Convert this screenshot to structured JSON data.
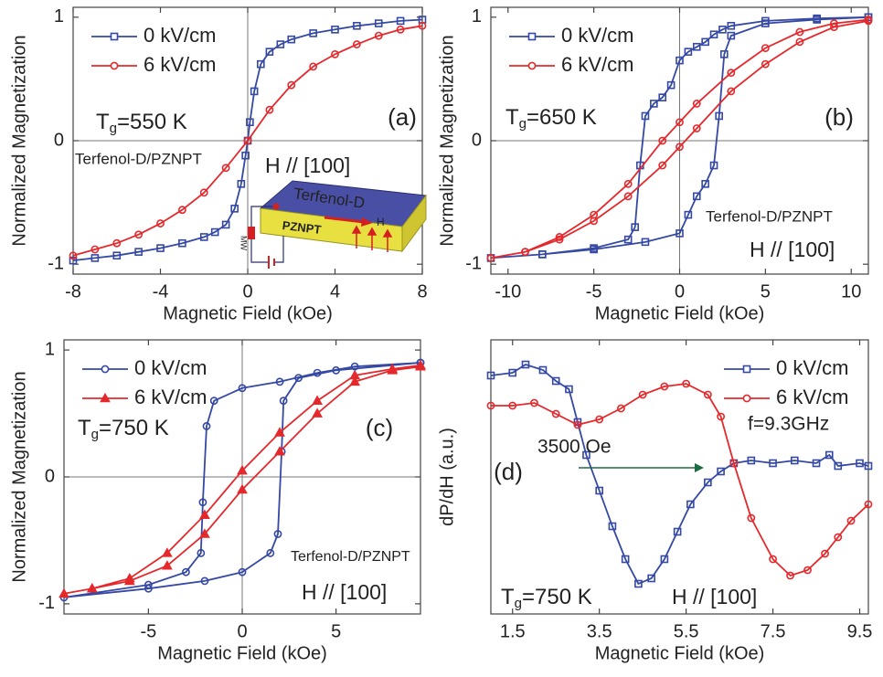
{
  "chart_data": [
    {
      "type": "line",
      "panel_label": "(a)",
      "xlabel": "Magnetic Field (kOe)",
      "ylabel": "Normalized Magnetization",
      "xlim": [
        -8,
        8
      ],
      "ylim": [
        -1.08,
        1.08
      ],
      "xticks": [
        -8,
        -4,
        0,
        4,
        8
      ],
      "yticks": [
        -1,
        0,
        1
      ],
      "zero_lines": true,
      "legend": "upper left",
      "temperature": {
        "symbol": "T",
        "subscript": "g",
        "text": "=550 K"
      },
      "annotations": [
        "Terfenol-D/PZNPT",
        "H // [100]"
      ],
      "inset": {
        "top_layer": "Terfenol-D",
        "bottom_layer": "PZNPT",
        "source": "MW",
        "field": "H"
      },
      "series": [
        {
          "name": "0 kV/cm",
          "color": "#3448a4",
          "marker": "square",
          "x": [
            -8,
            -7,
            -6,
            -5,
            -4,
            -3,
            -2,
            -1.5,
            -1,
            -0.6,
            -0.3,
            -0.1,
            0,
            0.1,
            0.3,
            0.6,
            1,
            1.5,
            2,
            3,
            4,
            5,
            6,
            7,
            8
          ],
          "values": [
            -0.97,
            -0.95,
            -0.93,
            -0.9,
            -0.87,
            -0.83,
            -0.78,
            -0.74,
            -0.68,
            -0.55,
            -0.35,
            -0.12,
            0,
            0.15,
            0.4,
            0.62,
            0.72,
            0.78,
            0.82,
            0.87,
            0.9,
            0.93,
            0.95,
            0.97,
            0.98
          ]
        },
        {
          "name": "6 kV/cm",
          "color": "#e5282b",
          "marker": "circle",
          "x": [
            -8,
            -7,
            -6,
            -5,
            -4,
            -3,
            -2,
            -1,
            0,
            1,
            2,
            3,
            4,
            5,
            6,
            7,
            8
          ],
          "values": [
            -0.93,
            -0.88,
            -0.83,
            -0.76,
            -0.67,
            -0.56,
            -0.42,
            -0.22,
            0,
            0.25,
            0.45,
            0.6,
            0.7,
            0.78,
            0.85,
            0.9,
            0.93
          ]
        }
      ]
    },
    {
      "type": "line",
      "panel_label": "(b)",
      "xlabel": "Magnetic Field (kOe)",
      "ylabel": "Normalized Magnetization",
      "xlim": [
        -11,
        11
      ],
      "ylim": [
        -1.08,
        1.08
      ],
      "xticks": [
        -10,
        -5,
        0,
        5,
        10
      ],
      "yticks": [
        -1,
        0,
        1
      ],
      "zero_lines": true,
      "legend": "upper left",
      "temperature": {
        "symbol": "T",
        "subscript": "g",
        "text": "=650 K"
      },
      "annotations": [
        "Terfenol-D/PZNPT",
        "H // [100]"
      ],
      "series": [
        {
          "name": "0 kV/cm",
          "color": "#3448a4",
          "marker": "square",
          "x": [
            11,
            8,
            5,
            3,
            2.5,
            2,
            1.5,
            1,
            0.5,
            0,
            -0.5,
            -1,
            -1.5,
            -2,
            -2.3,
            -2.6,
            -3,
            -5,
            -8,
            -11,
            -8,
            -5,
            -2,
            0,
            0.5,
            1,
            1.5,
            2,
            2.3,
            2.6,
            3,
            5,
            8,
            11
          ],
          "values": [
            1.0,
            0.99,
            0.97,
            0.93,
            0.9,
            0.86,
            0.8,
            0.76,
            0.72,
            0.65,
            0.45,
            0.35,
            0.3,
            0.2,
            -0.2,
            -0.7,
            -0.8,
            -0.87,
            -0.92,
            -0.95,
            -0.92,
            -0.88,
            -0.82,
            -0.75,
            -0.6,
            -0.45,
            -0.35,
            -0.2,
            0.2,
            0.7,
            0.85,
            0.95,
            0.98,
            1.0
          ]
        },
        {
          "name": "6 kV/cm",
          "color": "#e5282b",
          "marker": "circle",
          "x": [
            11,
            9,
            7,
            5,
            3,
            1,
            0,
            -1,
            -3,
            -5,
            -7,
            -9,
            -11,
            -9,
            -7,
            -5,
            -3,
            -1,
            0,
            1,
            3,
            5,
            7,
            9,
            11
          ],
          "values": [
            0.98,
            0.95,
            0.88,
            0.75,
            0.55,
            0.3,
            0.15,
            0.0,
            -0.35,
            -0.6,
            -0.78,
            -0.9,
            -0.95,
            -0.9,
            -0.8,
            -0.65,
            -0.45,
            -0.2,
            -0.05,
            0.1,
            0.4,
            0.62,
            0.8,
            0.92,
            0.97
          ]
        }
      ]
    },
    {
      "type": "line",
      "panel_label": "(c)",
      "xlabel": "Magnetic Field (kOe)",
      "ylabel": "Normalized Magnetization",
      "xlim": [
        -9.5,
        9.5
      ],
      "ylim": [
        -1.08,
        1.08
      ],
      "xticks": [
        -5,
        0,
        5
      ],
      "yticks": [
        -1,
        0,
        1
      ],
      "zero_lines": true,
      "legend": "upper left",
      "temperature": {
        "symbol": "T",
        "subscript": "g",
        "text": "=750 K"
      },
      "annotations": [
        "Terfenol-D/PZNPT",
        "H // [100]"
      ],
      "series": [
        {
          "name": "0 kV/cm",
          "color": "#3448a4",
          "marker": "circle",
          "x": [
            9.5,
            6,
            4,
            2,
            0,
            -1.5,
            -1.9,
            -2.1,
            -2.2,
            -3,
            -5,
            -9.5,
            -5,
            -2,
            0,
            1.5,
            1.9,
            2.1,
            2.2,
            3,
            5,
            9.5
          ],
          "values": [
            0.9,
            0.87,
            0.82,
            0.75,
            0.7,
            0.6,
            0.4,
            -0.2,
            -0.6,
            -0.75,
            -0.85,
            -0.95,
            -0.88,
            -0.82,
            -0.75,
            -0.6,
            -0.45,
            0.2,
            0.6,
            0.78,
            0.84,
            0.9
          ]
        },
        {
          "name": "6 kV/cm",
          "color": "#e5282b",
          "marker": "triangle",
          "x": [
            9.5,
            8,
            6,
            4,
            2,
            0,
            -2,
            -4,
            -6,
            -8,
            -9.5,
            -8,
            -6,
            -4,
            -2,
            0,
            2,
            4,
            6,
            8,
            9.5
          ],
          "values": [
            0.88,
            0.85,
            0.8,
            0.6,
            0.35,
            0.05,
            -0.3,
            -0.6,
            -0.8,
            -0.88,
            -0.92,
            -0.88,
            -0.82,
            -0.7,
            -0.45,
            -0.1,
            0.2,
            0.5,
            0.75,
            0.84,
            0.87
          ]
        }
      ]
    },
    {
      "type": "line",
      "panel_label": "(d)",
      "xlabel": "Magnetic Field (kOe)",
      "ylabel": "dP/dH (a.u.)",
      "xlim": [
        1.0,
        9.7
      ],
      "ylim": [
        0,
        1
      ],
      "xticks": [
        1.5,
        3.5,
        5.5,
        7.5,
        9.5
      ],
      "zero_lines": false,
      "legend": "upper right",
      "temperature": {
        "symbol": "T",
        "subscript": "g",
        "text": "=750 K"
      },
      "annotations": [
        "H // [100]",
        "f=9.3GHz"
      ],
      "shift_label": {
        "text": "3500 Oe",
        "color": "#1d6b45"
      },
      "series": [
        {
          "name": "0 kV/cm",
          "color": "#3448a4",
          "marker": "square",
          "x": [
            1.0,
            1.5,
            1.8,
            2.2,
            2.5,
            2.8,
            3.0,
            3.2,
            3.5,
            3.8,
            4.1,
            4.4,
            4.7,
            5.0,
            5.3,
            5.6,
            6.0,
            6.3,
            6.6,
            7.0,
            7.5,
            8.0,
            8.5,
            8.8,
            9.0,
            9.5,
            9.7
          ],
          "values": [
            0.87,
            0.88,
            0.91,
            0.89,
            0.85,
            0.82,
            0.7,
            0.58,
            0.45,
            0.32,
            0.2,
            0.11,
            0.13,
            0.2,
            0.3,
            0.4,
            0.48,
            0.52,
            0.55,
            0.56,
            0.55,
            0.56,
            0.55,
            0.58,
            0.54,
            0.55,
            0.54
          ]
        },
        {
          "name": "6 kV/cm",
          "color": "#e5282b",
          "marker": "circle",
          "x": [
            1.0,
            1.5,
            2.0,
            2.5,
            3.0,
            3.5,
            4.0,
            4.5,
            5.0,
            5.5,
            6.0,
            6.3,
            6.6,
            7.0,
            7.5,
            7.9,
            8.3,
            8.7,
            9.0,
            9.3,
            9.7
          ],
          "values": [
            0.76,
            0.76,
            0.77,
            0.73,
            0.69,
            0.71,
            0.75,
            0.8,
            0.83,
            0.84,
            0.8,
            0.72,
            0.55,
            0.35,
            0.2,
            0.14,
            0.16,
            0.22,
            0.28,
            0.34,
            0.4
          ]
        }
      ]
    }
  ]
}
